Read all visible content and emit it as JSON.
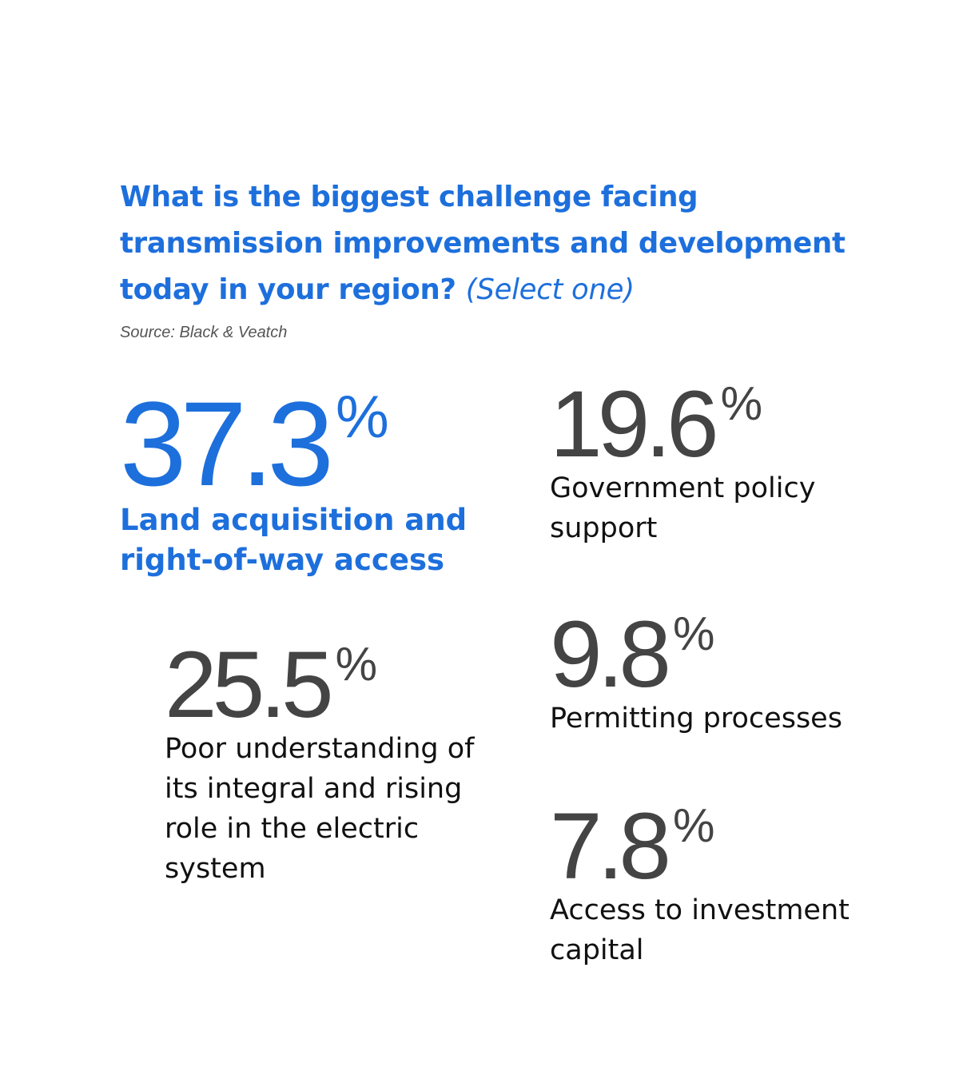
{
  "title": {
    "main": "What is the biggest challenge facing transmission improvements and development today in your region?",
    "qualifier": "(Select one)"
  },
  "source": "Source: Black & Veatch",
  "chart_data": {
    "type": "table",
    "title": "What is the biggest challenge facing transmission improvements and development today in your region? (Select one)",
    "unit": "%",
    "categories": [
      "Land acquisition and right-of-way access",
      "Government policy support",
      "Poor understanding of its integral and rising role in the electric system",
      "Permitting processes",
      "Access to investment capital"
    ],
    "values": [
      37.3,
      19.6,
      25.5,
      9.8,
      7.8
    ],
    "display_values": [
      "37.3",
      "19.6",
      "25.5",
      "9.8",
      "7.8"
    ],
    "colors": {
      "highlight": "#1d6fdc",
      "number": "#444444",
      "label": "#111111"
    }
  }
}
